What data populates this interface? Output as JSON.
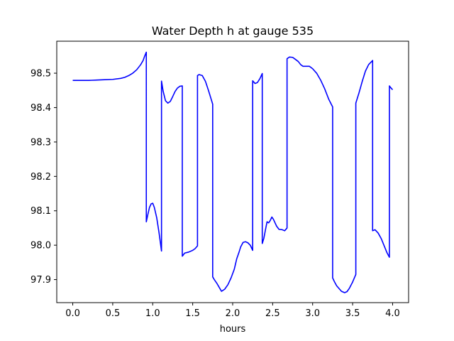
{
  "chart_data": {
    "type": "line",
    "title": "Water Depth h at gauge 535",
    "xlabel": "hours",
    "ylabel": "",
    "xlim": [
      -0.2,
      4.2
    ],
    "ylim": [
      97.833,
      98.593
    ],
    "xticks": [
      0.0,
      0.5,
      1.0,
      1.5,
      2.0,
      2.5,
      3.0,
      3.5,
      4.0
    ],
    "xtick_labels": [
      "0.0",
      "0.5",
      "1.0",
      "1.5",
      "2.0",
      "2.5",
      "3.0",
      "3.5",
      "4.0"
    ],
    "yticks": [
      97.9,
      98.0,
      98.1,
      98.2,
      98.3,
      98.4,
      98.5
    ],
    "ytick_labels": [
      "97.9",
      "98.0",
      "98.1",
      "98.2",
      "98.3",
      "98.4",
      "98.5"
    ],
    "grid": false,
    "series": [
      {
        "name": "",
        "color": "#0000ff",
        "x": [
          0.0,
          0.1,
          0.2,
          0.3,
          0.4,
          0.5,
          0.6,
          0.65,
          0.7,
          0.75,
          0.8,
          0.85,
          0.88,
          0.9,
          0.92,
          0.92,
          0.94,
          0.96,
          0.98,
          1.0,
          1.02,
          1.05,
          1.08,
          1.11,
          1.11,
          1.13,
          1.16,
          1.19,
          1.22,
          1.25,
          1.28,
          1.31,
          1.34,
          1.37,
          1.37,
          1.4,
          1.45,
          1.5,
          1.53,
          1.56,
          1.56,
          1.58,
          1.62,
          1.66,
          1.7,
          1.75,
          1.75,
          1.77,
          1.8,
          1.83,
          1.86,
          1.9,
          1.94,
          1.98,
          2.02,
          2.05,
          2.08,
          2.1,
          2.13,
          2.16,
          2.19,
          2.22,
          2.25,
          2.25,
          2.28,
          2.31,
          2.34,
          2.37,
          2.37,
          2.39,
          2.41,
          2.43,
          2.45,
          2.47,
          2.49,
          2.51,
          2.53,
          2.55,
          2.58,
          2.62,
          2.65,
          2.68,
          2.68,
          2.71,
          2.75,
          2.78,
          2.82,
          2.85,
          2.88,
          2.92,
          2.96,
          3.0,
          3.05,
          3.1,
          3.15,
          3.2,
          3.25,
          3.25,
          3.27,
          3.3,
          3.33,
          3.36,
          3.4,
          3.43,
          3.46,
          3.5,
          3.54,
          3.54,
          3.58,
          3.62,
          3.66,
          3.7,
          3.75,
          3.75,
          3.78,
          3.82,
          3.86,
          3.9,
          3.93,
          3.96,
          3.96,
          3.98,
          4.0
        ],
        "y": [
          98.479,
          98.479,
          98.479,
          98.48,
          98.481,
          98.482,
          98.485,
          98.488,
          98.493,
          98.5,
          98.51,
          98.525,
          98.537,
          98.55,
          98.561,
          98.068,
          98.09,
          98.11,
          98.12,
          98.122,
          98.11,
          98.08,
          98.035,
          97.983,
          98.477,
          98.448,
          98.42,
          98.413,
          98.418,
          98.432,
          98.447,
          98.457,
          98.462,
          98.463,
          97.968,
          97.977,
          97.98,
          97.985,
          97.99,
          97.998,
          98.493,
          98.496,
          98.493,
          98.476,
          98.448,
          98.41,
          97.908,
          97.9,
          97.89,
          97.878,
          97.866,
          97.872,
          97.885,
          97.905,
          97.93,
          97.96,
          97.98,
          97.995,
          98.008,
          98.01,
          98.007,
          98.0,
          97.985,
          98.478,
          98.47,
          98.473,
          98.484,
          98.499,
          98.005,
          98.02,
          98.045,
          98.068,
          98.065,
          98.072,
          98.082,
          98.075,
          98.065,
          98.055,
          98.046,
          98.045,
          98.042,
          98.05,
          98.542,
          98.547,
          98.546,
          98.541,
          98.534,
          98.525,
          98.52,
          98.52,
          98.52,
          98.513,
          98.5,
          98.48,
          98.455,
          98.425,
          98.402,
          97.905,
          97.895,
          97.882,
          97.874,
          97.866,
          97.862,
          97.865,
          97.875,
          97.893,
          97.915,
          98.413,
          98.443,
          98.476,
          98.506,
          98.525,
          98.537,
          98.042,
          98.045,
          98.035,
          98.018,
          97.995,
          97.978,
          97.965,
          98.463,
          98.457,
          98.452
        ]
      }
    ]
  }
}
